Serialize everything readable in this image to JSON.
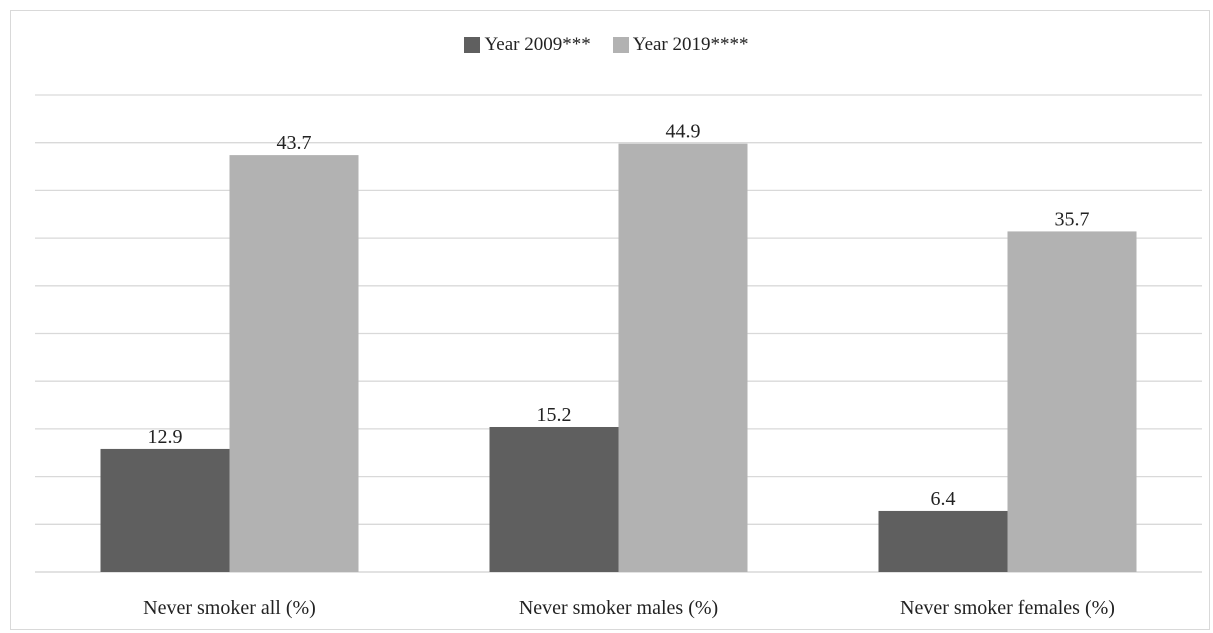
{
  "chart_data": {
    "type": "bar",
    "title": "",
    "xlabel": "",
    "ylabel": "",
    "categories": [
      "Never smoker all (%)",
      "Never smoker males (%)",
      "Never smoker females (%)"
    ],
    "series": [
      {
        "name": "Year 2009***",
        "values": [
          12.9,
          15.2,
          6.4
        ],
        "color": "#5f5f5f"
      },
      {
        "name": "Year 2019****",
        "values": [
          43.7,
          44.9,
          35.7
        ],
        "color": "#b2b2b2"
      }
    ],
    "data_labels": [
      [
        "12.9",
        "15.2",
        "6.4"
      ],
      [
        "43.7",
        "44.9",
        "35.7"
      ]
    ],
    "ylim": [
      0,
      50
    ],
    "y_axis_labels_shown": false,
    "grid": true,
    "legend_position": "top"
  }
}
